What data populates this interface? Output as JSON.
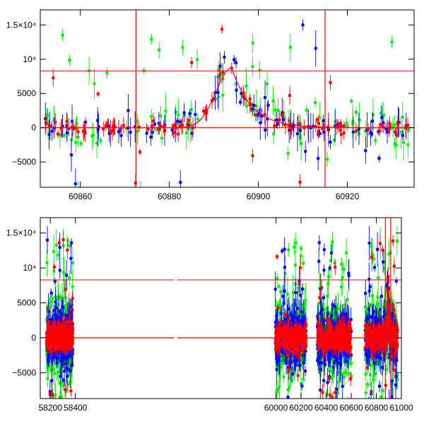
{
  "chart_data": [
    {
      "type": "scatter",
      "title": "",
      "xlabel": "",
      "ylabel": "",
      "xlim": [
        60851,
        60935
      ],
      "ylim": [
        -8700,
        17200
      ],
      "x_ticks": [
        60860,
        60880,
        60900,
        60920
      ],
      "x_tick_labels": [
        "60860",
        "60880",
        "60900",
        "60920"
      ],
      "y_ticks": [
        -5000,
        0,
        5000,
        10000,
        15000
      ],
      "y_tick_labels": [
        "−5000",
        "0",
        "5000",
        "10⁴",
        "1.5×10⁴"
      ],
      "hlines": [
        8300,
        0
      ],
      "vlines": [
        60872.5,
        60915
      ],
      "model_curve": {
        "peak_x": 60894,
        "peak_y": 8700,
        "rise_tau": 3.5,
        "decay_tau": 4.5
      },
      "series": [
        {
          "name": "blue",
          "color": "#0000ff",
          "noise": 900,
          "outlier_rate": 0.08
        },
        {
          "name": "green",
          "color": "#00ee00",
          "noise": 1500,
          "outlier_rate": 0.22
        },
        {
          "name": "red",
          "color": "#ff0000",
          "noise": 500,
          "outlier_rate": 0.06
        }
      ],
      "sample_points": [
        {
          "x": 60856,
          "y": 13500,
          "series": "green"
        },
        {
          "x": 60866,
          "y": 8000,
          "series": "green"
        },
        {
          "x": 60876,
          "y": 12900,
          "series": "green"
        },
        {
          "x": 60885,
          "y": 9500,
          "series": "red"
        },
        {
          "x": 60894,
          "y": 8700,
          "series": "red"
        },
        {
          "x": 60895,
          "y": 9500,
          "series": "blue"
        },
        {
          "x": 60910,
          "y": 15000,
          "series": "blue"
        },
        {
          "x": 60930,
          "y": 12500,
          "series": "green"
        }
      ]
    },
    {
      "type": "scatter",
      "title": "",
      "xlabel": "",
      "ylabel": "",
      "xlim": [
        58120,
        61000
      ],
      "ylim": [
        -8700,
        17200
      ],
      "x_ticks": [
        58200,
        58400,
        60000,
        60200,
        60400,
        60600,
        60800,
        61000
      ],
      "x_tick_labels": [
        "58200",
        "58400",
        "60000",
        "60200",
        "60400",
        "60600",
        "60800",
        "61000"
      ],
      "y_ticks": [
        -5000,
        0,
        5000,
        10000,
        15000
      ],
      "y_tick_labels": [
        "−5000",
        "0",
        "5000",
        "10⁴",
        "1.5×10⁴"
      ],
      "hlines": [
        8300,
        0
      ],
      "vlines": [
        60872.5,
        60915
      ],
      "x_gaps": [
        [
          58410,
          59990
        ]
      ],
      "seasons": [
        [
          58170,
          58380
        ],
        [
          59995,
          60240
        ],
        [
          60330,
          60600
        ],
        [
          60710,
          60970
        ]
      ],
      "model_curve": {
        "peak_x": 60894,
        "peak_y": 8700,
        "rise_tau": 3.5,
        "decay_tau": 4.5
      },
      "series": [
        {
          "name": "blue",
          "color": "#0000ff",
          "noise": 1800,
          "outlier_rate": 0.1
        },
        {
          "name": "green",
          "color": "#00ee00",
          "noise": 2200,
          "outlier_rate": 0.15
        },
        {
          "name": "red",
          "color": "#ff0000",
          "noise": 900,
          "outlier_rate": 0.05
        }
      ]
    }
  ]
}
